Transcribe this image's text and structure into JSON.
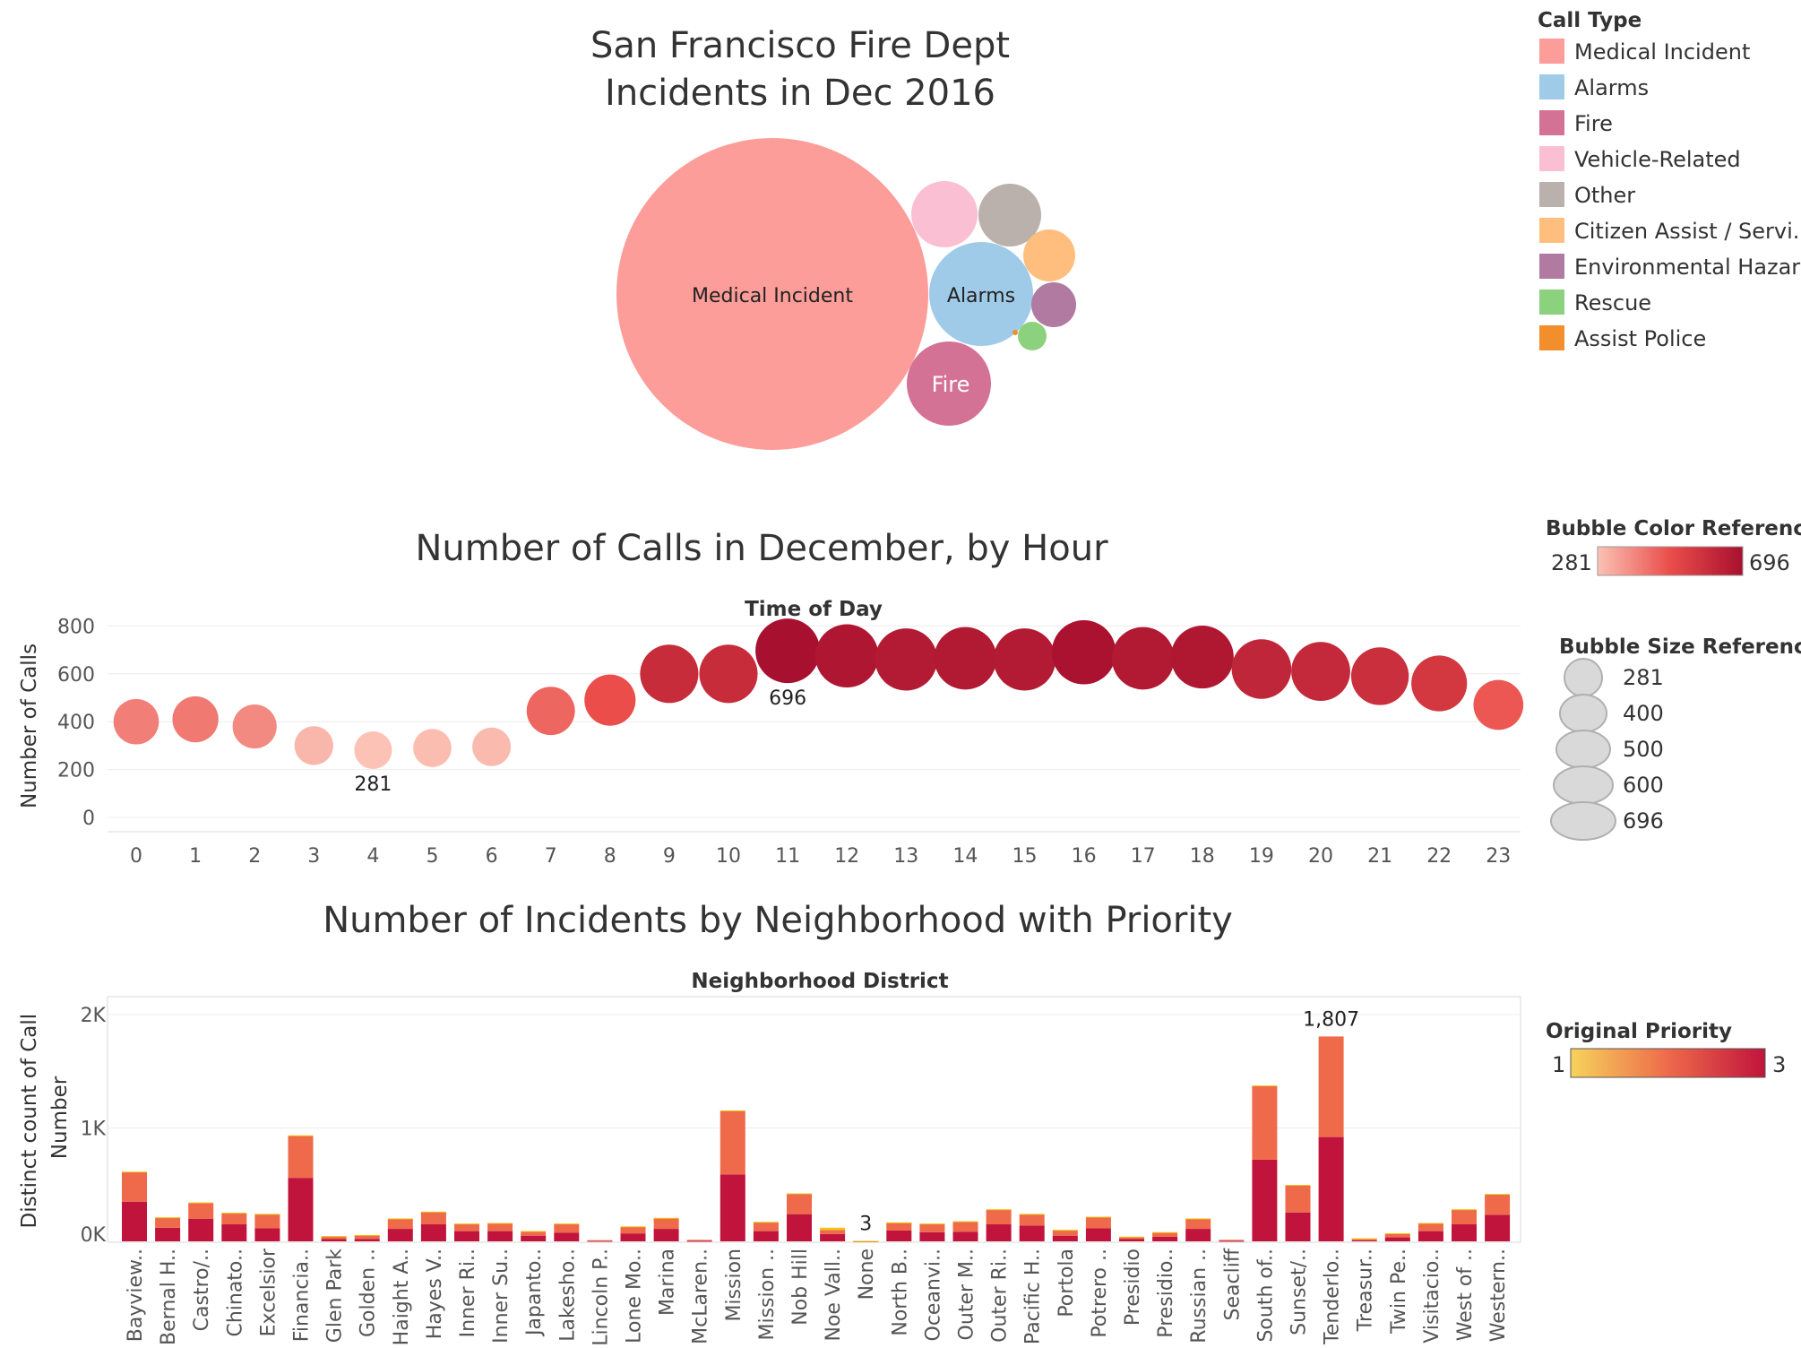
{
  "colors": {
    "medical": "#fc9d9a",
    "alarms": "#a0cbe8",
    "fire": "#d37295",
    "vehicle": "#fabfd2",
    "other": "#bab0ac",
    "citizen": "#ffbe7d",
    "env": "#b07aa1",
    "rescue": "#8cd17d",
    "police": "#f28e2b",
    "prio1": "#f1c40f",
    "prio2": "#ee6a4b",
    "prio3": "#c0143c"
  },
  "bubble": {
    "title_line1": "San Francisco Fire Dept",
    "title_line2": "Incidents in Dec 2016",
    "labels": {
      "medical": "Medical Incident",
      "alarms": "Alarms",
      "fire": "Fire"
    }
  },
  "call_type_legend": {
    "title": "Call Type",
    "items": [
      {
        "label": "Medical Incident",
        "color": "#fc9d9a"
      },
      {
        "label": "Alarms",
        "color": "#a0cbe8"
      },
      {
        "label": "Fire",
        "color": "#d37295"
      },
      {
        "label": "Vehicle-Related",
        "color": "#fabfd2"
      },
      {
        "label": "Other",
        "color": "#bab0ac"
      },
      {
        "label": "Citizen Assist / Servi..",
        "color": "#ffbe7d"
      },
      {
        "label": "Environmental Hazard",
        "color": "#b07aa1"
      },
      {
        "label": "Rescue",
        "color": "#8cd17d"
      },
      {
        "label": "Assist Police",
        "color": "#f28e2b"
      }
    ]
  },
  "color_ref": {
    "title": "Bubble Color Reference",
    "min_label": "281",
    "max_label": "696"
  },
  "size_ref": {
    "title": "Bubble Size Reference",
    "labels": [
      "281",
      "400",
      "500",
      "600",
      "696"
    ]
  },
  "priority_ref": {
    "title": "Original Priority",
    "min_label": "1",
    "max_label": "3"
  },
  "chart_data": [
    {
      "type": "scatter",
      "title": "Number of Calls in December, by Hour",
      "subtitle": "Time of Day",
      "ylabel": "Number of Calls",
      "ylim": [
        0,
        850
      ],
      "yticks": [
        "800",
        "600",
        "400",
        "200",
        "0"
      ],
      "x": [
        0,
        1,
        2,
        3,
        4,
        5,
        6,
        7,
        8,
        9,
        10,
        11,
        12,
        13,
        14,
        15,
        16,
        17,
        18,
        19,
        20,
        21,
        22,
        23
      ],
      "values": [
        400,
        410,
        380,
        300,
        281,
        290,
        295,
        445,
        490,
        600,
        600,
        696,
        675,
        660,
        665,
        660,
        690,
        665,
        670,
        620,
        610,
        590,
        560,
        470
      ],
      "annotations": [
        {
          "x": 4,
          "label": "281"
        },
        {
          "x": 11,
          "label": "696"
        }
      ],
      "color_range": [
        281,
        696
      ],
      "grid": true
    },
    {
      "type": "bar",
      "title": "Number of Incidents by Neighborhood with Priority",
      "subtitle": "Neighborhood District",
      "ylabel": "Distinct count of Call Number",
      "ylim": [
        0,
        2000
      ],
      "yticks": [
        "2K",
        "1K",
        "0K"
      ],
      "categories": [
        "Bayview..",
        "Bernal H..",
        "Castro/..",
        "Chinato..",
        "Excelsior",
        "Financia..",
        "Glen Park",
        "Golden ..",
        "Haight A..",
        "Hayes V..",
        "Inner Ri..",
        "Inner Su..",
        "Japanto..",
        "Lakesho..",
        "Lincoln P..",
        "Lone Mo..",
        "Marina",
        "McLaren..",
        "Mission",
        "Mission ..",
        "Nob Hill",
        "Noe Vall..",
        "None",
        "North B..",
        "Oceanvi..",
        "Outer M..",
        "Outer Ri..",
        "Pacific H..",
        "Portola",
        "Potrero ..",
        "Presidio",
        "Presidio..",
        "Russian ..",
        "Seacliff",
        "South of..",
        "Sunset/..",
        "Tenderlo..",
        "Treasur..",
        "Twin Pe..",
        "Visitacio..",
        "West of ..",
        "Western.."
      ],
      "series": [
        {
          "name": "3",
          "values": [
            350,
            120,
            200,
            150,
            115,
            560,
            20,
            20,
            110,
            150,
            90,
            90,
            50,
            75,
            5,
            70,
            110,
            5,
            590,
            90,
            240,
            65,
            1,
            95,
            80,
            85,
            150,
            140,
            50,
            115,
            20,
            40,
            110,
            5,
            720,
            255,
            920,
            10,
            35,
            90,
            150,
            235
          ]
        },
        {
          "name": "2",
          "values": [
            260,
            90,
            140,
            100,
            125,
            370,
            25,
            35,
            90,
            110,
            65,
            70,
            40,
            80,
            5,
            60,
            95,
            8,
            560,
            80,
            180,
            35,
            1,
            70,
            75,
            90,
            130,
            100,
            50,
            100,
            20,
            40,
            90,
            8,
            650,
            240,
            887,
            15,
            35,
            70,
            130,
            180
          ]
        },
        {
          "name": "1",
          "values": [
            5,
            2,
            3,
            2,
            2,
            5,
            1,
            1,
            2,
            2,
            2,
            2,
            1,
            2,
            0,
            2,
            2,
            0,
            5,
            2,
            3,
            20,
            1,
            2,
            2,
            2,
            3,
            2,
            1,
            2,
            1,
            1,
            2,
            0,
            5,
            3,
            0,
            1,
            1,
            2,
            3,
            3
          ]
        }
      ],
      "annotations": [
        {
          "category": "Tenderlo..",
          "label": "1,807"
        },
        {
          "category": "None",
          "label": "3"
        }
      ],
      "grid": true
    }
  ]
}
